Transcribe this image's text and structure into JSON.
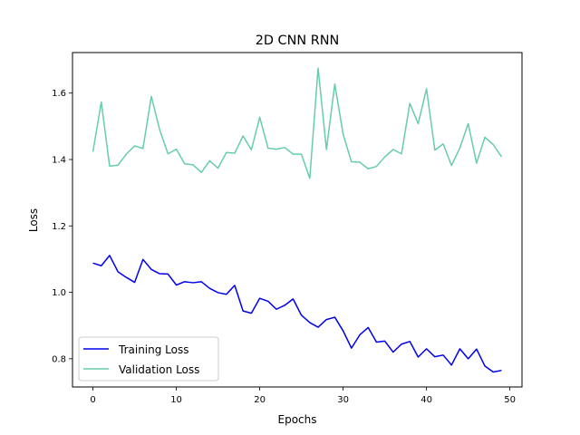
{
  "chart_data": {
    "type": "line",
    "title": "2D CNN RNN",
    "xlabel": "Epochs",
    "ylabel": "Loss",
    "xlim": [
      -2.45,
      51.45
    ],
    "ylim": [
      0.715,
      1.722
    ],
    "xticks": [
      0,
      10,
      20,
      30,
      40,
      50
    ],
    "yticks": [
      0.8,
      1.0,
      1.2,
      1.4,
      1.6
    ],
    "xtick_labels": [
      "0",
      "10",
      "20",
      "30",
      "40",
      "50"
    ],
    "ytick_labels": [
      "0.8",
      "1.0",
      "1.2",
      "1.4",
      "1.6"
    ],
    "grid": false,
    "legend_position": "lower-left",
    "x": [
      0,
      1,
      2,
      3,
      4,
      5,
      6,
      7,
      8,
      9,
      10,
      11,
      12,
      13,
      14,
      15,
      16,
      17,
      18,
      19,
      20,
      21,
      22,
      23,
      24,
      25,
      26,
      27,
      28,
      29,
      30,
      31,
      32,
      33,
      34,
      35,
      36,
      37,
      38,
      39,
      40,
      41,
      42,
      43,
      44,
      45,
      46,
      47,
      48,
      49
    ],
    "series": [
      {
        "name": "Training Loss",
        "color": "#0000ee",
        "values": [
          1.088,
          1.08,
          1.111,
          1.062,
          1.045,
          1.03,
          1.099,
          1.069,
          1.056,
          1.055,
          1.022,
          1.032,
          1.029,
          1.032,
          1.012,
          0.999,
          0.994,
          1.021,
          0.944,
          0.937,
          0.982,
          0.973,
          0.949,
          0.961,
          0.98,
          0.931,
          0.909,
          0.895,
          0.918,
          0.925,
          0.884,
          0.832,
          0.872,
          0.894,
          0.85,
          0.853,
          0.82,
          0.844,
          0.852,
          0.805,
          0.83,
          0.806,
          0.811,
          0.781,
          0.83,
          0.8,
          0.829,
          0.778,
          0.76,
          0.765
        ]
      },
      {
        "name": "Validation Loss",
        "color": "#66cdaa",
        "values": [
          1.423,
          1.573,
          1.38,
          1.383,
          1.416,
          1.441,
          1.433,
          1.59,
          1.49,
          1.417,
          1.431,
          1.387,
          1.384,
          1.361,
          1.396,
          1.374,
          1.421,
          1.419,
          1.471,
          1.429,
          1.527,
          1.434,
          1.431,
          1.436,
          1.416,
          1.416,
          1.343,
          1.675,
          1.43,
          1.627,
          1.476,
          1.393,
          1.392,
          1.372,
          1.379,
          1.408,
          1.43,
          1.417,
          1.569,
          1.508,
          1.613,
          1.428,
          1.447,
          1.382,
          1.435,
          1.508,
          1.389,
          1.467,
          1.445,
          1.408
        ]
      }
    ]
  }
}
